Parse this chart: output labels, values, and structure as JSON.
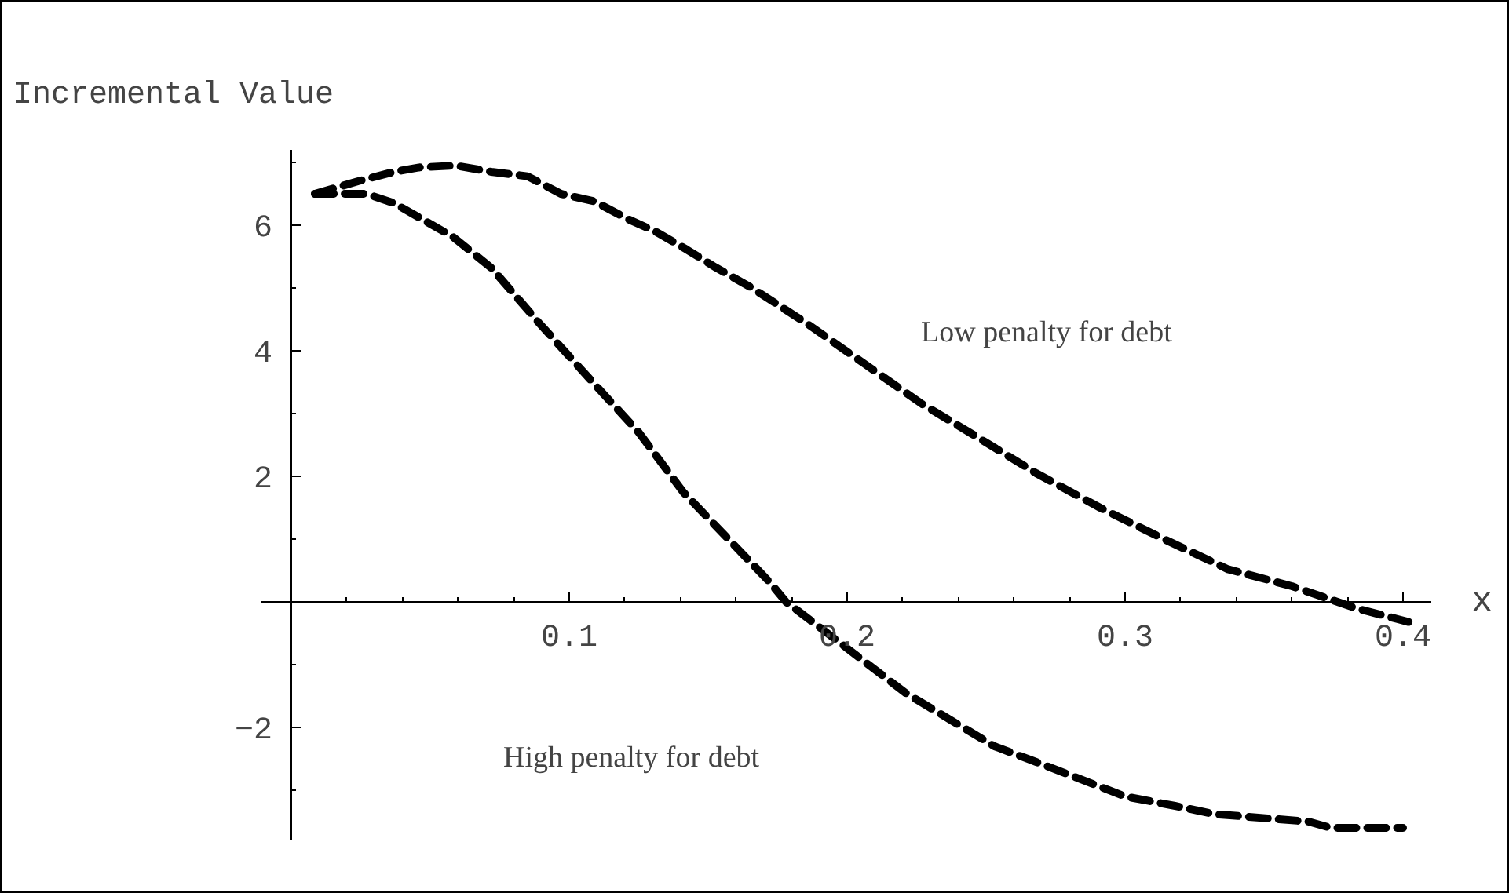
{
  "chart_data": {
    "type": "line",
    "ylabel": "Incremental    Value",
    "xlabel": "x",
    "xlim": [
      -0.011,
      0.41
    ],
    "ylim": [
      -3.8,
      7.2
    ],
    "xticks": [
      0.1,
      0.2,
      0.3,
      0.4
    ],
    "yticks": [
      -2,
      2,
      4,
      6
    ],
    "grid": false,
    "marker": "none",
    "line_style": "dashed",
    "series": [
      {
        "color": "#000000",
        "x": [
          0.0085,
          0.024,
          0.037,
          0.046,
          0.059,
          0.072,
          0.085,
          0.097,
          0.109,
          0.121,
          0.131,
          0.142,
          0.153,
          0.165,
          0.185,
          0.206,
          0.227,
          0.247,
          0.268,
          0.291,
          0.314,
          0.337,
          0.36,
          0.383,
          0.402
        ],
        "values": [
          6.5,
          6.7,
          6.85,
          6.92,
          6.95,
          6.85,
          6.78,
          6.5,
          6.38,
          6.1,
          5.9,
          5.62,
          5.32,
          5.02,
          4.45,
          3.8,
          3.15,
          2.62,
          2.05,
          1.5,
          1.0,
          0.52,
          0.25,
          -0.1,
          -0.32
        ]
      },
      {
        "color": "#000000",
        "x": [
          0.0085,
          0.027,
          0.037,
          0.058,
          0.072,
          0.089,
          0.107,
          0.125,
          0.141,
          0.172,
          0.178,
          0.187,
          0.221,
          0.253,
          0.268,
          0.3,
          0.318,
          0.332,
          0.366,
          0.374,
          0.4
        ],
        "values": [
          6.5,
          6.5,
          6.35,
          5.82,
          5.32,
          4.45,
          3.57,
          2.7,
          1.75,
          0.32,
          0.0,
          -0.3,
          -1.45,
          -2.3,
          -2.55,
          -3.1,
          -3.25,
          -3.38,
          -3.5,
          -3.6,
          -3.6
        ]
      }
    ],
    "annotations": [
      "Low penalty for debt",
      "High penalty for debt"
    ]
  }
}
